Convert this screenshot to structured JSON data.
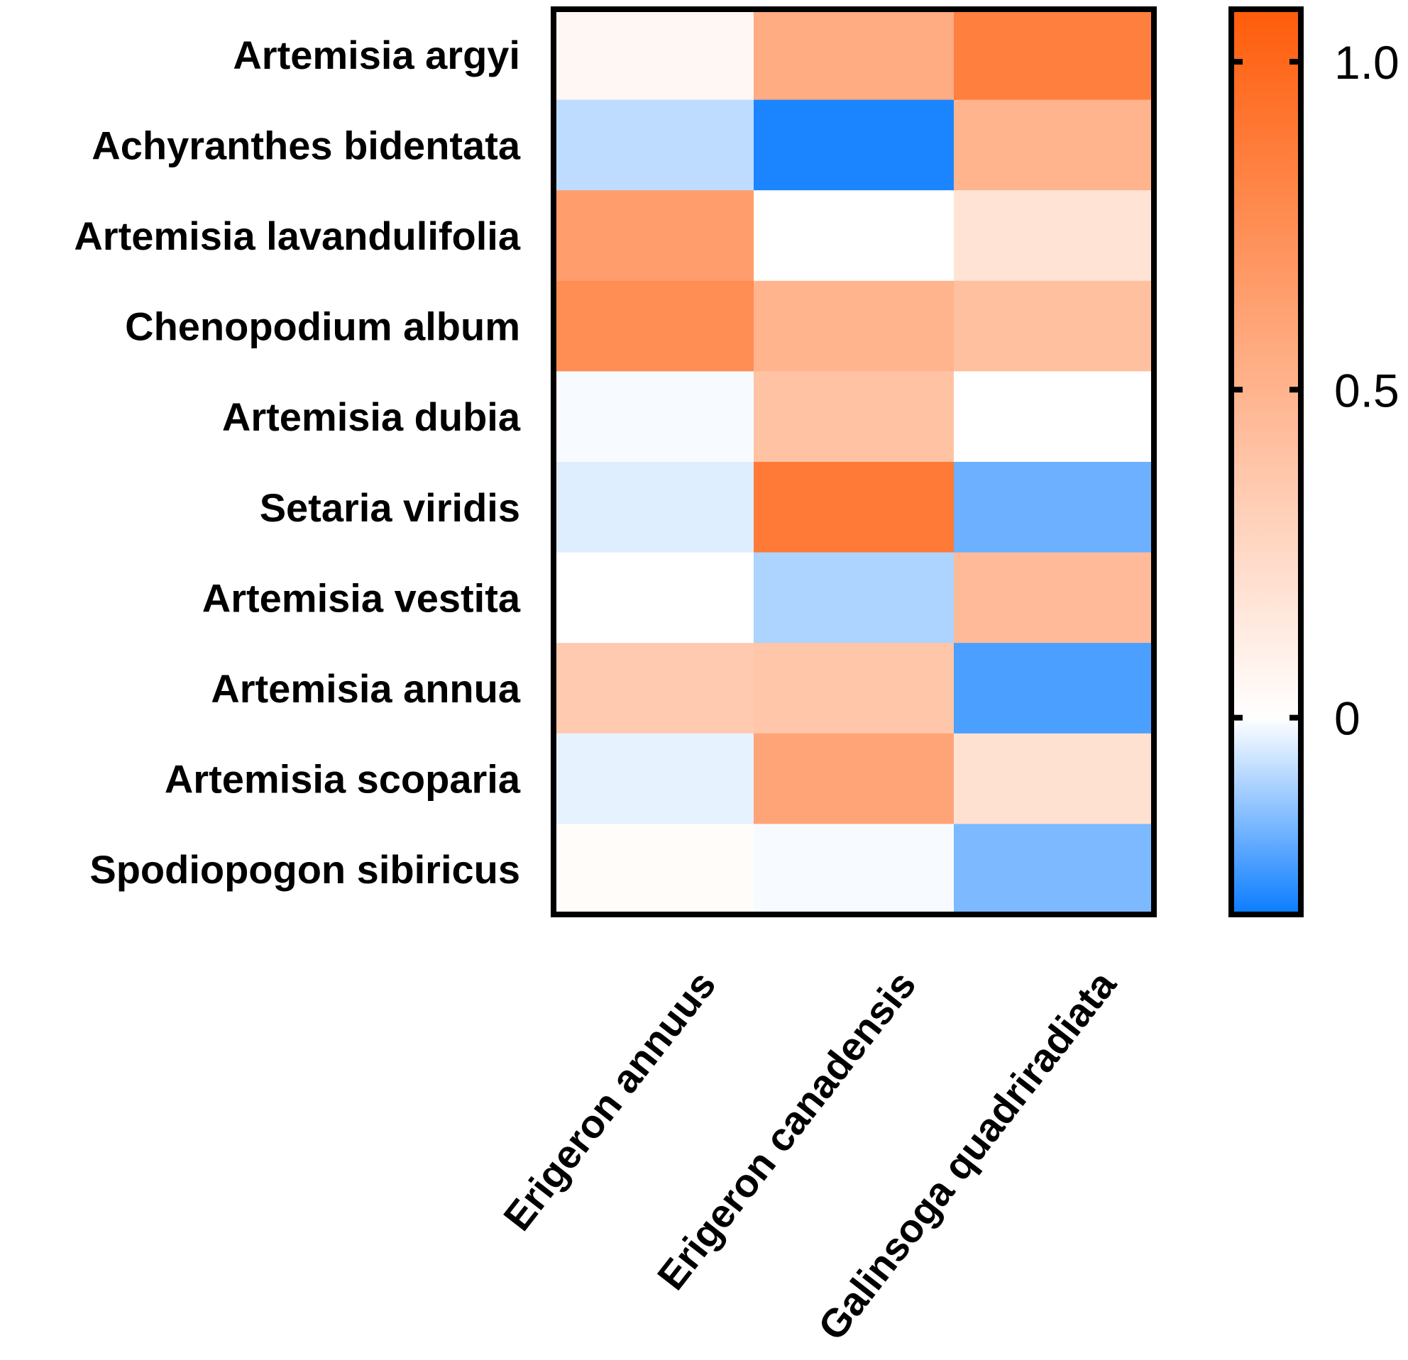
{
  "chart_data": {
    "type": "heatmap",
    "title": "",
    "xlabel": "",
    "ylabel": "",
    "columns": [
      "Erigeron annuus",
      "Erigeron canadensis",
      "Galinsoga quadriradiata"
    ],
    "rows": [
      "Artemisia argyi",
      "Achyranthes bidentata",
      "Artemisia lavandulifolia",
      "Chenopodium album",
      "Artemisia dubia",
      "Setaria viridis",
      "Artemisia vestita",
      "Artemisia annua",
      "Artemisia scoparia",
      "Spodiopogon sibiricus"
    ],
    "values": [
      [
        0.05,
        0.55,
        0.85
      ],
      [
        -0.08,
        -0.28,
        0.5
      ],
      [
        0.65,
        0.0,
        0.18
      ],
      [
        0.75,
        0.5,
        0.42
      ],
      [
        -0.01,
        0.4,
        0.0
      ],
      [
        -0.04,
        0.88,
        -0.18
      ],
      [
        0.0,
        -0.1,
        0.45
      ],
      [
        0.35,
        0.38,
        -0.22
      ],
      [
        -0.03,
        0.6,
        0.2
      ],
      [
        0.02,
        -0.01,
        -0.16
      ]
    ],
    "colorbar": {
      "min": -0.3,
      "max": 1.08,
      "ticks": [
        1.0,
        0.5,
        0
      ],
      "tick_labels": [
        "1.0",
        "0.5",
        "0"
      ],
      "colors": {
        "low": "#0a7cff",
        "mid": "#ffffff",
        "high": "#ff5c0a"
      }
    }
  }
}
